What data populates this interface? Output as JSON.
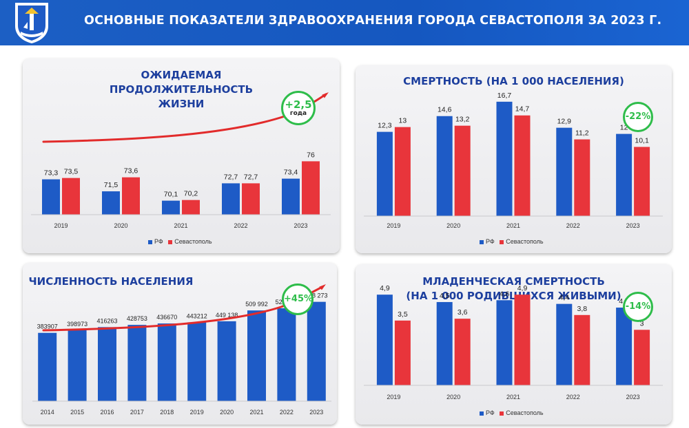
{
  "header": {
    "title": "ОСНОВНЫЕ ПОКАЗАТЕЛИ ЗДРАВООХРАНЕНИЯ ГОРОДА СЕВАСТОПОЛЯ ЗА 2023 Г."
  },
  "colors": {
    "rf": "#1e5bc6",
    "sev": "#e8353b",
    "accent": "#2ebd4a",
    "title": "#1d3f9e",
    "trend": "#e22b2b"
  },
  "life": {
    "title_l1": "ОЖИДАЕМАЯ",
    "title_l2": "ПРОДОЛЖИТЕЛЬНОСТЬ",
    "title_l3": "ЖИЗНИ",
    "badge_value": "+2,5",
    "badge_unit": "года",
    "legend_rf": "РФ",
    "legend_sev": "Севастополь"
  },
  "mortality": {
    "title": "СМЕРТНОСТЬ (НА 1 000 НАСЕЛЕНИЯ)",
    "badge_value": "-22%",
    "legend_rf": "РФ",
    "legend_sev": "Севастополь"
  },
  "population": {
    "title": "ЧИСЛЕННОСТЬ НАСЕЛЕНИЯ",
    "badge_value": "+45%"
  },
  "infant": {
    "title_l1": "МЛАДЕНЧЕСКАЯ СМЕРТНОСТЬ",
    "title_l2": "(НА 1 000 РОДИВШИХСЯ ЖИВЫМИ)",
    "badge_value": "-14%",
    "legend_rf": "РФ",
    "legend_sev": "Севастополь"
  },
  "chart_data": [
    {
      "id": "life",
      "type": "bar",
      "title": "ОЖИДАЕМАЯ ПРОДОЛЖИТЕЛЬНОСТЬ ЖИЗНИ",
      "categories": [
        "2019",
        "2020",
        "2021",
        "2022",
        "2023"
      ],
      "series": [
        {
          "name": "РФ",
          "values": [
            73.3,
            71.5,
            70.1,
            72.7,
            73.4
          ],
          "labels": [
            "73,3",
            "71,5",
            "70,1",
            "72,7",
            "73,4"
          ]
        },
        {
          "name": "Севастополь",
          "values": [
            73.5,
            73.6,
            70.2,
            72.7,
            76
          ],
          "labels": [
            "73,5",
            "73,6",
            "70,2",
            "72,7",
            "76"
          ]
        }
      ],
      "ylim": [
        68,
        78
      ],
      "legend": "bottom",
      "grid": false
    },
    {
      "id": "mortality",
      "type": "bar",
      "title": "СМЕРТНОСТЬ (НА 1 000 НАСЕЛЕНИЯ)",
      "categories": [
        "2019",
        "2020",
        "2021",
        "2022",
        "2023"
      ],
      "series": [
        {
          "name": "РФ",
          "values": [
            12.3,
            14.6,
            16.7,
            12.9,
            12
          ],
          "labels": [
            "12,3",
            "14,6",
            "16,7",
            "12,9",
            "12"
          ]
        },
        {
          "name": "Севастополь",
          "values": [
            13,
            13.2,
            14.7,
            11.2,
            10.1
          ],
          "labels": [
            "13",
            "13,2",
            "14,7",
            "11,2",
            "10,1"
          ]
        }
      ],
      "ylim": [
        0,
        20
      ],
      "legend": "bottom",
      "grid": false
    },
    {
      "id": "population",
      "type": "bar",
      "title": "ЧИСЛЕННОСТЬ НАСЕЛЕНИЯ",
      "categories": [
        "2014",
        "2015",
        "2016",
        "2017",
        "2018",
        "2019",
        "2020",
        "2021",
        "2022",
        "2023"
      ],
      "series": [
        {
          "values": [
            383907,
            398973,
            416263,
            428753,
            436670,
            443212,
            449138,
            509992,
            522057,
            558273
          ],
          "labels": [
            "383907",
            "398973",
            "416263",
            "428753",
            "436670",
            "443212",
            "449 138",
            "509 992",
            "522 057",
            "558 273"
          ]
        }
      ],
      "ylim": [
        0,
        700000
      ],
      "legend": "none",
      "grid": false
    },
    {
      "id": "infant",
      "type": "bar",
      "title": "МЛАДЕНЧЕСКАЯ СМЕРТНОСТЬ (НА 1 000 РОДИВШИХСЯ ЖИВЫМИ)",
      "categories": [
        "2019",
        "2020",
        "2021",
        "2022",
        "2023"
      ],
      "series": [
        {
          "name": "РФ",
          "values": [
            4.9,
            4.5,
            4.6,
            4.4,
            4.2
          ],
          "labels": [
            "4,9",
            "4,5",
            "4,6",
            "4,4",
            "4,2"
          ]
        },
        {
          "name": "Севастополь",
          "values": [
            3.5,
            3.6,
            4.9,
            3.8,
            3
          ],
          "labels": [
            "3,5",
            "3,6",
            "4,9",
            "3,8",
            "3"
          ]
        }
      ],
      "ylim": [
        0,
        5.8
      ],
      "legend": "bottom",
      "grid": false
    }
  ]
}
